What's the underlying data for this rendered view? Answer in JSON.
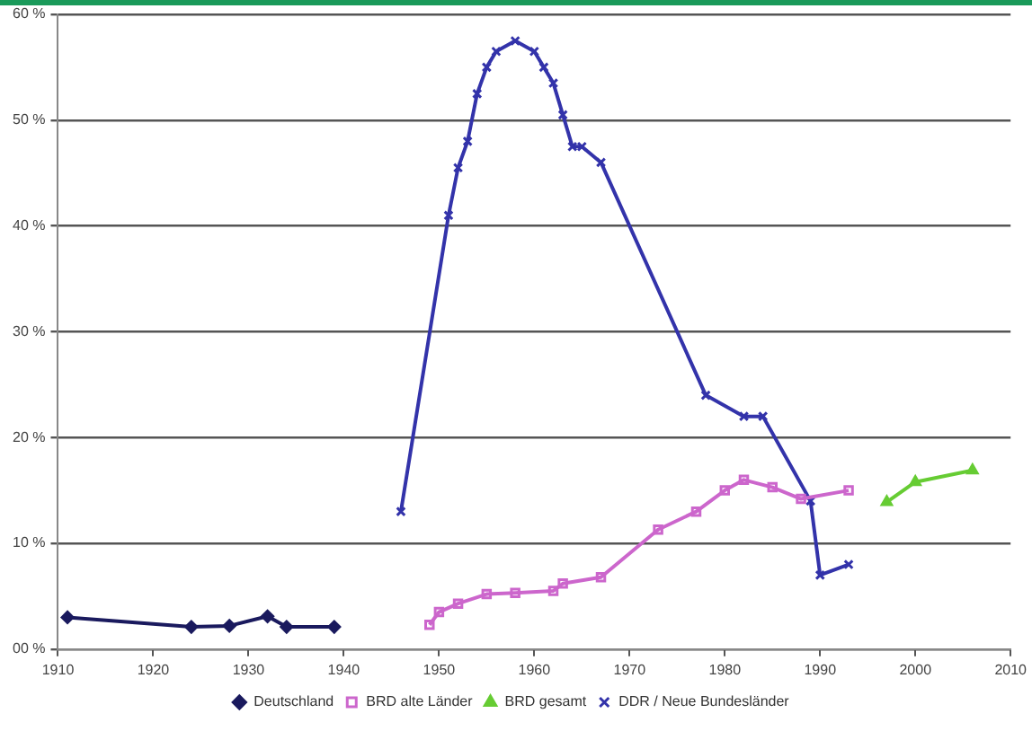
{
  "chart_data": {
    "type": "line",
    "xlim": [
      1910,
      2010
    ],
    "xticks": [
      1910,
      1920,
      1930,
      1940,
      1950,
      1960,
      1970,
      1980,
      1990,
      2000,
      2010
    ],
    "ylim": [
      0,
      60
    ],
    "yticks": [
      {
        "value": 0,
        "label": "00 %"
      },
      {
        "value": 10,
        "label": "10 %"
      },
      {
        "value": 20,
        "label": "20 %"
      },
      {
        "value": 30,
        "label": "30 %"
      },
      {
        "value": 40,
        "label": "40 %"
      },
      {
        "value": 50,
        "label": "50 %"
      },
      {
        "value": 60,
        "label": "60 %"
      }
    ],
    "grid": "y",
    "legend": "bottom",
    "line_style": "solid",
    "series": [
      {
        "name": "Deutschland",
        "color": "#1a1a5e",
        "marker": "diamond",
        "x": [
          1911,
          1924,
          1928,
          1932,
          1934,
          1939
        ],
        "values": [
          3,
          2.1,
          2.2,
          3.1,
          2.1,
          2.1
        ]
      },
      {
        "name": "BRD alte Länder",
        "color": "#cc66cc",
        "marker": "square",
        "x": [
          1949,
          1950,
          1952,
          1955,
          1958,
          1962,
          1963,
          1967,
          1973,
          1977,
          1980,
          1982,
          1985,
          1988,
          1993
        ],
        "values": [
          2.3,
          3.5,
          4.3,
          5.2,
          5.3,
          5.5,
          6.2,
          6.8,
          11.3,
          13,
          15,
          16,
          15.3,
          14.2,
          15
        ]
      },
      {
        "name": "BRD gesamt",
        "color": "#66cc33",
        "marker": "triangle",
        "x": [
          1997,
          2000,
          2006
        ],
        "values": [
          13.9,
          15.8,
          16.9
        ]
      },
      {
        "name": "DDR / Neue Bundesländer",
        "color": "#3333aa",
        "marker": "cross",
        "x": [
          1946,
          1951,
          1952,
          1953,
          1954,
          1955,
          1956,
          1958,
          1960,
          1961,
          1962,
          1963,
          1964,
          1965,
          1967,
          1978,
          1982,
          1984,
          1989,
          1990,
          1993
        ],
        "values": [
          13,
          41,
          45.5,
          48,
          52.5,
          55,
          56.5,
          57.5,
          56.5,
          55,
          53.5,
          50.5,
          47.5,
          47.5,
          46,
          24,
          22,
          22,
          14,
          7,
          8
        ]
      }
    ]
  }
}
